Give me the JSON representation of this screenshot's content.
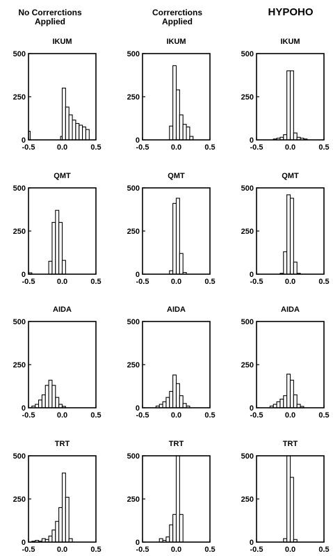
{
  "columns": [
    {
      "title_lines": [
        "No Correrctions",
        "Applied"
      ]
    },
    {
      "title_lines": [
        "Correrctions",
        "Applied"
      ]
    },
    {
      "title_lines": [
        "HYPOHO"
      ]
    }
  ],
  "chart_data": [
    {
      "type": "bar",
      "column": 0,
      "row": 0,
      "title": "IKUM",
      "bin_edges": [
        -0.5,
        -0.475,
        -0.025,
        0.0,
        0.05,
        0.1,
        0.15,
        0.2,
        0.25,
        0.3,
        0.35,
        0.4
      ],
      "values": [
        50,
        0,
        20,
        300,
        190,
        145,
        115,
        95,
        85,
        75,
        60
      ],
      "xlim": [
        -0.5,
        0.5
      ],
      "ylim": [
        0,
        500
      ],
      "xticks": [
        -0.5,
        0.0,
        0.5
      ],
      "yticks": [
        0,
        250,
        500
      ],
      "tick_labels": {
        "x": [
          "-0.5",
          "0.0",
          "0.5"
        ],
        "y": [
          "0",
          "250",
          "500"
        ]
      }
    },
    {
      "type": "bar",
      "column": 1,
      "row": 0,
      "title": "IKUM",
      "bin_edges": [
        -0.1,
        -0.05,
        0.0,
        0.05,
        0.1,
        0.15,
        0.2,
        0.25
      ],
      "values": [
        80,
        430,
        290,
        145,
        90,
        75,
        20
      ],
      "xlim": [
        -0.5,
        0.5
      ],
      "ylim": [
        0,
        500
      ],
      "xticks": [
        -0.5,
        0.0,
        0.5
      ],
      "yticks": [
        0,
        250,
        500
      ],
      "tick_labels": {
        "x": [
          "-0.5",
          "0.0",
          "0.5"
        ],
        "y": [
          "0",
          "250",
          "500"
        ]
      }
    },
    {
      "type": "bar",
      "column": 2,
      "row": 0,
      "title": "IKUM",
      "bin_edges": [
        -0.25,
        -0.2,
        -0.15,
        -0.1,
        -0.05,
        0.0,
        0.05,
        0.1,
        0.15,
        0.2,
        0.25
      ],
      "values": [
        5,
        10,
        15,
        30,
        400,
        400,
        40,
        15,
        10,
        5
      ],
      "xlim": [
        -0.5,
        0.5
      ],
      "ylim": [
        0,
        500
      ],
      "xticks": [
        -0.5,
        0.0,
        0.5
      ],
      "yticks": [
        0,
        250,
        500
      ],
      "tick_labels": {
        "x": [
          "-0.5",
          "0.0",
          "0.5"
        ],
        "y": [
          "0",
          "250",
          "500"
        ]
      }
    },
    {
      "type": "bar",
      "column": 0,
      "row": 1,
      "title": "QMT",
      "bin_edges": [
        -0.5,
        -0.45,
        -0.2,
        -0.15,
        -0.1,
        -0.05,
        0.0,
        0.05
      ],
      "values": [
        8,
        0,
        75,
        300,
        370,
        300,
        80
      ],
      "xlim": [
        -0.5,
        0.5
      ],
      "ylim": [
        0,
        500
      ],
      "xticks": [
        -0.5,
        0.0,
        0.5
      ],
      "yticks": [
        0,
        250,
        500
      ],
      "tick_labels": {
        "x": [
          "-0.5",
          "0.0",
          "0.5"
        ],
        "y": [
          "0",
          "250",
          "500"
        ]
      }
    },
    {
      "type": "bar",
      "column": 1,
      "row": 1,
      "title": "QMT",
      "bin_edges": [
        -0.1,
        -0.05,
        0.0,
        0.05,
        0.1,
        0.15
      ],
      "values": [
        20,
        410,
        440,
        120,
        10
      ],
      "xlim": [
        -0.5,
        0.5
      ],
      "ylim": [
        0,
        500
      ],
      "xticks": [
        -0.5,
        0.0,
        0.5
      ],
      "yticks": [
        0,
        250,
        500
      ],
      "tick_labels": {
        "x": [
          "-0.5",
          "0.0",
          "0.5"
        ],
        "y": [
          "0",
          "250",
          "500"
        ]
      }
    },
    {
      "type": "bar",
      "column": 2,
      "row": 1,
      "title": "QMT",
      "bin_edges": [
        -0.15,
        -0.1,
        -0.05,
        0.0,
        0.05,
        0.1,
        0.15
      ],
      "values": [
        5,
        130,
        460,
        440,
        70,
        5
      ],
      "xlim": [
        -0.5,
        0.5
      ],
      "ylim": [
        0,
        500
      ],
      "xticks": [
        -0.5,
        0.0,
        0.5
      ],
      "yticks": [
        0,
        250,
        500
      ],
      "tick_labels": {
        "x": [
          "-0.5",
          "0.0",
          "0.5"
        ],
        "y": [
          "0",
          "250",
          "500"
        ]
      }
    },
    {
      "type": "bar",
      "column": 0,
      "row": 2,
      "title": "AIDA",
      "bin_edges": [
        -0.45,
        -0.4,
        -0.35,
        -0.3,
        -0.25,
        -0.2,
        -0.15,
        -0.1,
        -0.05,
        0.0,
        0.05
      ],
      "values": [
        10,
        20,
        45,
        75,
        130,
        160,
        130,
        60,
        20,
        8
      ],
      "xlim": [
        -0.5,
        0.5
      ],
      "ylim": [
        0,
        500
      ],
      "xticks": [
        -0.5,
        0.0,
        0.5
      ],
      "yticks": [
        0,
        250,
        500
      ],
      "tick_labels": {
        "x": [
          "-0.5",
          "0.0",
          "0.5"
        ],
        "y": [
          "0",
          "250",
          "500"
        ]
      }
    },
    {
      "type": "bar",
      "column": 1,
      "row": 2,
      "title": "AIDA",
      "bin_edges": [
        -0.3,
        -0.25,
        -0.2,
        -0.15,
        -0.1,
        -0.05,
        0.0,
        0.05,
        0.1,
        0.15,
        0.2
      ],
      "values": [
        10,
        20,
        35,
        60,
        95,
        190,
        140,
        70,
        25,
        10
      ],
      "xlim": [
        -0.5,
        0.5
      ],
      "ylim": [
        0,
        500
      ],
      "xticks": [
        -0.5,
        0.0,
        0.5
      ],
      "yticks": [
        0,
        250,
        500
      ],
      "tick_labels": {
        "x": [
          "-0.5",
          "0.0",
          "0.5"
        ],
        "y": [
          "0",
          "250",
          "500"
        ]
      }
    },
    {
      "type": "bar",
      "column": 2,
      "row": 2,
      "title": "AIDA",
      "bin_edges": [
        -0.3,
        -0.25,
        -0.2,
        -0.15,
        -0.1,
        -0.05,
        0.0,
        0.05,
        0.1,
        0.15,
        0.2
      ],
      "values": [
        10,
        20,
        35,
        50,
        70,
        195,
        160,
        75,
        20,
        8
      ],
      "xlim": [
        -0.5,
        0.5
      ],
      "ylim": [
        0,
        500
      ],
      "xticks": [
        -0.5,
        0.0,
        0.5
      ],
      "yticks": [
        0,
        250,
        500
      ],
      "tick_labels": {
        "x": [
          "-0.5",
          "0.0",
          "0.5"
        ],
        "y": [
          "0",
          "250",
          "500"
        ]
      }
    },
    {
      "type": "bar",
      "column": 0,
      "row": 3,
      "title": "TRT",
      "bin_edges": [
        -0.45,
        -0.4,
        -0.35,
        -0.3,
        -0.25,
        -0.2,
        -0.15,
        -0.1,
        -0.05,
        0.0,
        0.05,
        0.1,
        0.15
      ],
      "values": [
        5,
        10,
        5,
        20,
        15,
        35,
        70,
        120,
        200,
        400,
        260,
        20
      ],
      "xlim": [
        -0.5,
        0.5
      ],
      "ylim": [
        0,
        500
      ],
      "xticks": [
        -0.5,
        0.0,
        0.5
      ],
      "yticks": [
        0,
        250,
        500
      ],
      "tick_labels": {
        "x": [
          "-0.5",
          "0.0",
          "0.5"
        ],
        "y": [
          "0",
          "250",
          "500"
        ]
      }
    },
    {
      "type": "bar",
      "column": 1,
      "row": 3,
      "title": "TRT",
      "bin_edges": [
        -0.25,
        -0.2,
        -0.15,
        -0.1,
        -0.05,
        0.0,
        0.05,
        0.1
      ],
      "values": [
        20,
        10,
        30,
        100,
        160,
        500,
        160
      ],
      "xlim": [
        -0.5,
        0.5
      ],
      "ylim": [
        0,
        500
      ],
      "xticks": [
        -0.5,
        0.0,
        0.5
      ],
      "yticks": [
        0,
        250,
        500
      ],
      "tick_labels": {
        "x": [
          "-0.5",
          "0.0",
          "0.5"
        ],
        "y": [
          "0",
          "250",
          "500"
        ]
      }
    },
    {
      "type": "bar",
      "column": 2,
      "row": 3,
      "title": "TRT",
      "bin_edges": [
        -0.1,
        -0.05,
        0.0,
        0.05,
        0.1
      ],
      "values": [
        20,
        500,
        375,
        15
      ],
      "xlim": [
        -0.5,
        0.5
      ],
      "ylim": [
        0,
        500
      ],
      "xticks": [
        -0.5,
        0.0,
        0.5
      ],
      "yticks": [
        0,
        250,
        500
      ],
      "tick_labels": {
        "x": [
          "-0.5",
          "0.0",
          "0.5"
        ],
        "y": [
          "0",
          "250",
          "500"
        ]
      }
    }
  ]
}
